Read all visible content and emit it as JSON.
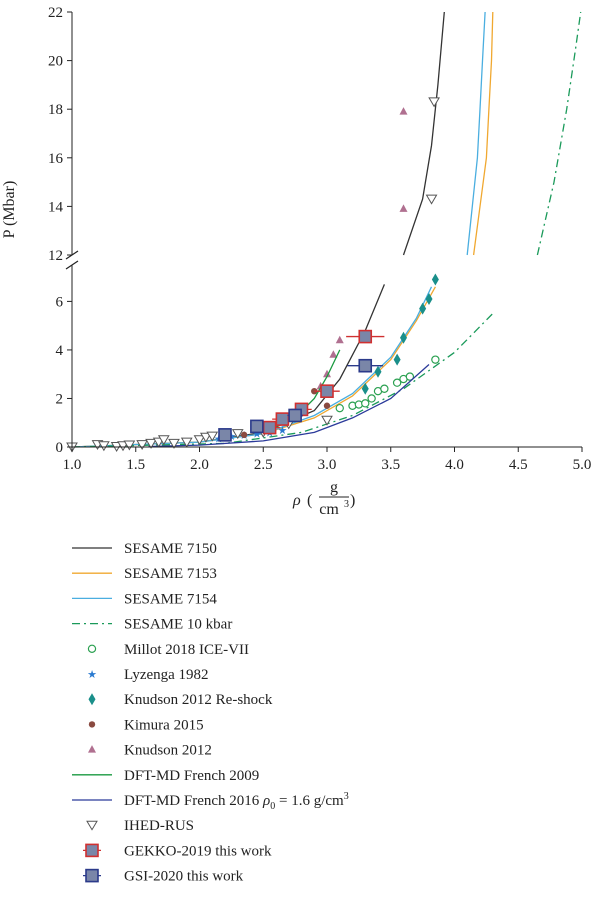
{
  "chart_data": {
    "type": "scatter",
    "xlabel": "ρ",
    "xunit": {
      "num": "g",
      "den": "cm3"
    },
    "ylabel": "P (Mbar)",
    "xlim": [
      1.0,
      5.0
    ],
    "ylim": [
      0,
      22
    ],
    "y_axis_break": [
      7.5,
      12
    ],
    "grid": false,
    "legend_position": "below",
    "xticks": [
      "1.0",
      "1.5",
      "2.0",
      "2.5",
      "3.0",
      "3.5",
      "4.0",
      "4.5",
      "5.0"
    ],
    "yticks_lower": [
      "0",
      "2",
      "4",
      "6"
    ],
    "yticks_upper": [
      "12",
      "14",
      "16",
      "18",
      "20",
      "22"
    ],
    "series": [
      {
        "name": "SESAME 7150",
        "kind": "line",
        "color": "#333333",
        "dash": "",
        "points": [
          [
            1.0,
            0
          ],
          [
            2.0,
            0.2
          ],
          [
            2.5,
            0.6
          ],
          [
            2.9,
            1.5
          ],
          [
            3.1,
            2.8
          ],
          [
            3.3,
            4.8
          ],
          [
            3.45,
            6.7
          ],
          [
            3.55,
            7.7
          ],
          [
            3.6,
            12.0
          ],
          [
            3.75,
            14.3
          ],
          [
            3.82,
            16.5
          ],
          [
            3.87,
            19.0
          ],
          [
            3.92,
            22
          ]
        ]
      },
      {
        "name": "SESAME 7153",
        "kind": "line",
        "color": "#f0a830",
        "dash": "",
        "points": [
          [
            1.0,
            0
          ],
          [
            2.0,
            0.2
          ],
          [
            2.5,
            0.55
          ],
          [
            2.9,
            1.2
          ],
          [
            3.2,
            2.1
          ],
          [
            3.5,
            3.6
          ],
          [
            3.7,
            5.2
          ],
          [
            3.85,
            6.6
          ],
          [
            3.95,
            7.6
          ],
          [
            4.15,
            12.0
          ],
          [
            4.2,
            14.0
          ],
          [
            4.25,
            16.0
          ],
          [
            4.27,
            18.0
          ],
          [
            4.29,
            20.0
          ],
          [
            4.3,
            22
          ]
        ]
      },
      {
        "name": "SESAME 7154",
        "kind": "line",
        "color": "#4aaee0",
        "dash": "",
        "points": [
          [
            1.0,
            0
          ],
          [
            2.0,
            0.2
          ],
          [
            2.5,
            0.55
          ],
          [
            2.9,
            1.3
          ],
          [
            3.2,
            2.2
          ],
          [
            3.5,
            3.7
          ],
          [
            3.7,
            5.3
          ],
          [
            3.82,
            6.6
          ],
          [
            3.92,
            7.6
          ],
          [
            4.1,
            12.0
          ],
          [
            4.14,
            14.0
          ],
          [
            4.18,
            16.0
          ],
          [
            4.2,
            18.0
          ],
          [
            4.22,
            20.0
          ],
          [
            4.24,
            22
          ]
        ]
      },
      {
        "name": "SESAME 10 kbar",
        "kind": "line",
        "color": "#1a9a5a",
        "dash": "8 4 2 4",
        "points": [
          [
            1.0,
            0
          ],
          [
            2.2,
            0.15
          ],
          [
            2.8,
            0.6
          ],
          [
            3.2,
            1.3
          ],
          [
            3.6,
            2.4
          ],
          [
            4.0,
            3.9
          ],
          [
            4.3,
            5.5
          ],
          [
            4.6,
            7.6
          ],
          [
            4.65,
            12.0
          ],
          [
            4.78,
            15.0
          ],
          [
            4.88,
            18.0
          ],
          [
            4.95,
            20.5
          ],
          [
            4.99,
            22
          ]
        ]
      },
      {
        "name": "Millot 2018 ICE-VII",
        "kind": "marker",
        "marker": "circle-open",
        "color": "#2aa050",
        "points": [
          [
            3.1,
            1.6
          ],
          [
            3.2,
            1.7
          ],
          [
            3.25,
            1.75
          ],
          [
            3.3,
            1.8
          ],
          [
            3.35,
            2.0
          ],
          [
            3.4,
            2.3
          ],
          [
            3.45,
            2.4
          ],
          [
            3.55,
            2.65
          ],
          [
            3.6,
            2.8
          ],
          [
            3.65,
            2.9
          ],
          [
            3.85,
            3.6
          ]
        ]
      },
      {
        "name": "Lyzenga 1982",
        "kind": "marker",
        "marker": "star",
        "color": "#2a7ad0",
        "points": [
          [
            2.15,
            0.35
          ],
          [
            2.25,
            0.45
          ],
          [
            2.35,
            0.5
          ],
          [
            2.45,
            0.55
          ],
          [
            2.55,
            0.6
          ],
          [
            2.65,
            0.7
          ]
        ]
      },
      {
        "name": "Knudson 2012 Re-shock",
        "kind": "marker",
        "marker": "diamond",
        "color": "#1a8f8a",
        "points": [
          [
            3.3,
            2.4
          ],
          [
            3.4,
            3.1
          ],
          [
            3.55,
            3.6
          ],
          [
            3.6,
            4.5
          ],
          [
            3.75,
            5.7
          ],
          [
            3.8,
            6.1
          ],
          [
            3.85,
            6.9
          ]
        ]
      },
      {
        "name": "Kimura 2015",
        "kind": "marker",
        "marker": "circle",
        "color": "#8a4a40",
        "points": [
          [
            2.35,
            0.5
          ],
          [
            2.55,
            0.75
          ],
          [
            2.7,
            1.1
          ],
          [
            2.8,
            1.5
          ],
          [
            2.9,
            2.3
          ],
          [
            3.0,
            1.7
          ]
        ]
      },
      {
        "name": "Knudson 2012",
        "kind": "marker",
        "marker": "triangle-up",
        "color": "#b07090",
        "points": [
          [
            2.95,
            2.5
          ],
          [
            3.0,
            3.0
          ],
          [
            3.05,
            3.8
          ],
          [
            3.1,
            4.4
          ],
          [
            3.6,
            13.9
          ],
          [
            3.6,
            17.9
          ]
        ]
      },
      {
        "name": "DFT-MD French 2009",
        "kind": "line",
        "color": "#1a9a40",
        "dash": "",
        "points": [
          [
            2.5,
            0.6
          ],
          [
            2.75,
            1.2
          ],
          [
            2.9,
            2.0
          ],
          [
            3.0,
            2.9
          ],
          [
            3.1,
            4.0
          ]
        ]
      },
      {
        "name": "DFT-MD French 2016",
        "kind": "line",
        "color": "#2b3a9a",
        "dash": "",
        "points": [
          [
            1.6,
            0.02
          ],
          [
            2.0,
            0.08
          ],
          [
            2.5,
            0.25
          ],
          [
            2.9,
            0.6
          ],
          [
            3.2,
            1.2
          ],
          [
            3.5,
            2.0
          ],
          [
            3.8,
            3.4
          ]
        ]
      },
      {
        "name": "IHED-RUS",
        "kind": "marker",
        "marker": "triangle-down",
        "color": "#555555",
        "points": [
          [
            1.0,
            0
          ],
          [
            1.2,
            0.1
          ],
          [
            1.25,
            0.05
          ],
          [
            1.35,
            0.02
          ],
          [
            1.4,
            0.05
          ],
          [
            1.45,
            0.08
          ],
          [
            1.55,
            0.1
          ],
          [
            1.62,
            0.15
          ],
          [
            1.68,
            0.2
          ],
          [
            1.72,
            0.3
          ],
          [
            1.8,
            0.15
          ],
          [
            1.9,
            0.2
          ],
          [
            2.0,
            0.3
          ],
          [
            2.05,
            0.4
          ],
          [
            2.1,
            0.45
          ],
          [
            2.2,
            0.5
          ],
          [
            2.3,
            0.55
          ],
          [
            2.5,
            0.6
          ],
          [
            2.7,
            0.95
          ],
          [
            3.0,
            1.1
          ],
          [
            3.82,
            14.3
          ],
          [
            3.84,
            18.3
          ]
        ]
      },
      {
        "name": "GEKKO-2019 this work",
        "kind": "marker",
        "marker": "square-error",
        "color": "#7a86a8",
        "edge": "#d03030",
        "points": [
          [
            2.55,
            0.8,
            0.08
          ],
          [
            2.65,
            1.15,
            0.08
          ],
          [
            2.8,
            1.55,
            0.08
          ],
          [
            3.0,
            2.3,
            0.1
          ],
          [
            3.3,
            4.55,
            0.15
          ]
        ]
      },
      {
        "name": "GSI-2020 this work",
        "kind": "marker",
        "marker": "square-error",
        "color": "#7a86a8",
        "edge": "#2b3a8a",
        "points": [
          [
            2.2,
            0.5,
            0.05
          ],
          [
            2.45,
            0.85,
            0.05
          ],
          [
            2.75,
            1.3,
            0.06
          ],
          [
            3.3,
            3.35,
            0.14
          ]
        ]
      }
    ],
    "legend_extra": {
      "DFT-MD French 2016": {
        "rho0": "ρ",
        "sub": "0",
        "eq": " = 1.6 g/cm",
        "sup": "3"
      }
    }
  }
}
